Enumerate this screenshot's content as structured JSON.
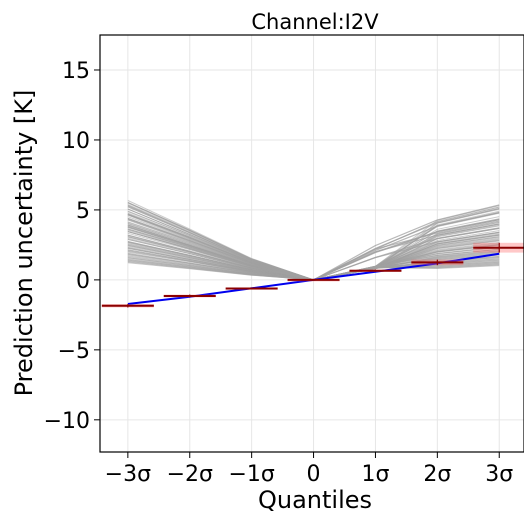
{
  "chart_data": {
    "type": "line",
    "title": "Channel:I2V",
    "xlabel": "Quantiles",
    "ylabel": "Prediction uncertainty [K]",
    "x": [
      -3,
      -2,
      -1,
      0,
      1,
      2,
      3
    ],
    "x_tick_labels": [
      "−3σ",
      "−2σ",
      "−1σ",
      "0",
      "1σ",
      "2σ",
      "3σ"
    ],
    "xlim": [
      -3.45,
      3.4
    ],
    "ylim": [
      -12.3,
      17.5
    ],
    "y_ticks": [
      -10,
      -5,
      0,
      5,
      10,
      15
    ],
    "y_tick_labels": [
      "−10",
      "−5",
      "0",
      "5",
      "10",
      "15"
    ],
    "grid": true,
    "colors": {
      "ensemble": "#a0a0a0",
      "reference": "#0000ee",
      "observed": "#8b0000",
      "observed_band": "#ff6060"
    },
    "ensemble_slopes": [
      [
        -3.57,
        -3.53,
        0.81,
        4.9
      ],
      [
        -3.63,
        -3.53,
        0.97,
        5.09
      ],
      [
        -3.71,
        -3.63,
        0.97,
        5.31
      ],
      [
        -3.45,
        -3.48,
        0.8,
        5.05
      ],
      [
        -3.57,
        -3.37,
        0.93,
        4.81
      ],
      [
        -3.26,
        -3.26,
        0.96,
        4.76
      ],
      [
        -3.19,
        -3.16,
        0.91,
        4.84
      ],
      [
        -3.32,
        -3.25,
        0.95,
        4.8
      ],
      [
        -3.32,
        -3.23,
        0.94,
        4.52
      ],
      [
        -3.13,
        -3.16,
        0.83,
        4.37
      ],
      [
        -3.08,
        -3.08,
        0.89,
        4.35
      ],
      [
        -3.08,
        -2.93,
        0.89,
        4.11
      ],
      [
        -2.95,
        -2.89,
        0.94,
        4.11
      ],
      [
        -2.83,
        -2.84,
        0.85,
        3.97
      ],
      [
        -2.84,
        -2.75,
        0.95,
        3.99
      ],
      [
        -2.8,
        -2.8,
        0.95,
        3.86
      ],
      [
        -2.83,
        -2.72,
        0.93,
        3.9
      ],
      [
        -2.69,
        -2.67,
        0.87,
        3.72
      ],
      [
        -2.65,
        -2.65,
        0.8,
        3.67
      ],
      [
        -2.65,
        -2.58,
        0.87,
        3.68
      ],
      [
        -2.61,
        -2.58,
        0.93,
        3.52
      ],
      [
        -2.62,
        -2.48,
        0.98,
        3.41
      ],
      [
        -2.53,
        -2.48,
        0.86,
        3.36
      ],
      [
        -2.5,
        -2.45,
        0.83,
        3.39
      ],
      [
        -2.45,
        -2.45,
        0.86,
        3.21
      ],
      [
        -2.39,
        -2.43,
        0.81,
        3.21
      ],
      [
        -2.33,
        -2.35,
        0.8,
        3.22
      ],
      [
        -2.35,
        -2.35,
        0.8,
        3.28
      ],
      [
        -2.31,
        -2.28,
        0.8,
        3.03
      ],
      [
        -2.34,
        -2.32,
        0.95,
        3.18
      ],
      [
        -2.19,
        -2.24,
        0.91,
        3.09
      ],
      [
        -2.19,
        -2.24,
        0.84,
        3.08
      ],
      [
        -2.12,
        -2.16,
        0.93,
        2.9
      ],
      [
        -2.09,
        -2.06,
        0.8,
        2.96
      ],
      [
        -2.09,
        -2.03,
        0.91,
        2.84
      ],
      [
        -2.08,
        -2.05,
        0.82,
        2.78
      ],
      [
        -2.02,
        -1.99,
        0.8,
        2.82
      ],
      [
        -2.01,
        -1.99,
        0.89,
        2.62
      ],
      [
        -1.97,
        -1.97,
        0.94,
        2.68
      ],
      [
        -1.92,
        -1.91,
        0.87,
        2.51
      ],
      [
        -1.86,
        -1.87,
        0.92,
        2.53
      ],
      [
        -1.86,
        -1.87,
        0.96,
        2.54
      ],
      [
        -1.8,
        -1.74,
        0.8,
        2.48
      ],
      [
        -1.8,
        -1.76,
        0.92,
        2.49
      ],
      [
        -1.76,
        -1.75,
        0.96,
        2.35
      ],
      [
        -1.74,
        -1.7,
        0.87,
        2.37
      ],
      [
        -1.73,
        -1.74,
        0.92,
        2.31
      ],
      [
        -1.65,
        -1.67,
        0.96,
        2.21
      ],
      [
        -1.65,
        -1.63,
        0.91,
        2.18
      ],
      [
        -1.62,
        -1.59,
        0.92,
        2.18
      ],
      [
        -1.61,
        -1.59,
        0.84,
        2.09
      ],
      [
        -1.57,
        -1.55,
        0.81,
        2.07
      ],
      [
        -1.52,
        -1.49,
        0.84,
        2.01
      ],
      [
        -1.52,
        -1.46,
        0.84,
        1.99
      ],
      [
        -1.48,
        -1.45,
        0.86,
        1.93
      ],
      [
        -1.46,
        -1.45,
        0.9,
        1.9
      ],
      [
        -1.4,
        -1.38,
        0.91,
        1.84
      ],
      [
        -1.39,
        -1.37,
        0.96,
        1.81
      ],
      [
        -1.34,
        -1.34,
        0.92,
        1.77
      ],
      [
        -1.33,
        -1.32,
        0.82,
        1.67
      ],
      [
        -1.27,
        -1.29,
        0.82,
        1.68
      ],
      [
        -1.25,
        -1.21,
        0.89,
        1.6
      ],
      [
        -1.21,
        -1.2,
        0.87,
        1.6
      ],
      [
        -1.18,
        -1.18,
        0.82,
        1.52
      ],
      [
        -1.15,
        -1.15,
        0.95,
        1.49
      ],
      [
        -1.12,
        -1.1,
        0.86,
        1.43
      ],
      [
        -1.07,
        -1.06,
        0.9,
        1.4
      ],
      [
        -1.04,
        -1.01,
        0.91,
        1.34
      ],
      [
        -1.01,
        -1.02,
        0.84,
        1.3
      ],
      [
        -0.98,
        -0.96,
        0.94,
        1.26
      ],
      [
        -0.95,
        -0.93,
        0.88,
        1.22
      ],
      [
        -0.92,
        -0.91,
        0.88,
        1.18
      ],
      [
        -0.89,
        -0.88,
        0.88,
        1.14
      ],
      [
        -0.86,
        -0.85,
        0.88,
        1.1
      ],
      [
        -0.83,
        -0.82,
        0.88,
        1.06
      ],
      [
        -0.8,
        -0.79,
        0.88,
        1.02
      ]
    ],
    "ensemble_outliers": [
      [
        -3.6,
        -3.55,
        2.45,
        5.35
      ],
      [
        -3.4,
        -3.35,
        2.2,
        5.2
      ],
      [
        -3.45,
        -3.4,
        2.25,
        5.1
      ],
      [
        -3.0,
        -3.05,
        1.95,
        4.3
      ],
      [
        -3.03,
        -3.0,
        2.2,
        4.2
      ],
      [
        -2.9,
        -2.8,
        2.1,
        4.8
      ],
      [
        -2.5,
        -2.4,
        2.0,
        4.3
      ],
      [
        -2.3,
        -2.2,
        2.0,
        4.0
      ],
      [
        -3.05,
        -3.0,
        1.6,
        3.7
      ],
      [
        -2.6,
        -2.5,
        1.6,
        3.4
      ]
    ],
    "blue_reference": {
      "x": [
        -3,
        -2,
        -1,
        0,
        1,
        2,
        3
      ],
      "y": [
        -1.72,
        -1.2,
        -0.6,
        0.0,
        0.58,
        1.18,
        1.87
      ]
    },
    "observed_points": [
      {
        "x": -3,
        "y": -1.85,
        "err": 0.12
      },
      {
        "x": -2,
        "y": -1.15,
        "err": 0.1
      },
      {
        "x": -1,
        "y": -0.62,
        "err": 0.06
      },
      {
        "x": 0,
        "y": 0.0,
        "err": 0.03
      },
      {
        "x": 1,
        "y": 0.65,
        "err": 0.08
      },
      {
        "x": 2,
        "y": 1.25,
        "err": 0.2
      },
      {
        "x": 3,
        "y": 2.3,
        "err": 0.35
      }
    ]
  }
}
